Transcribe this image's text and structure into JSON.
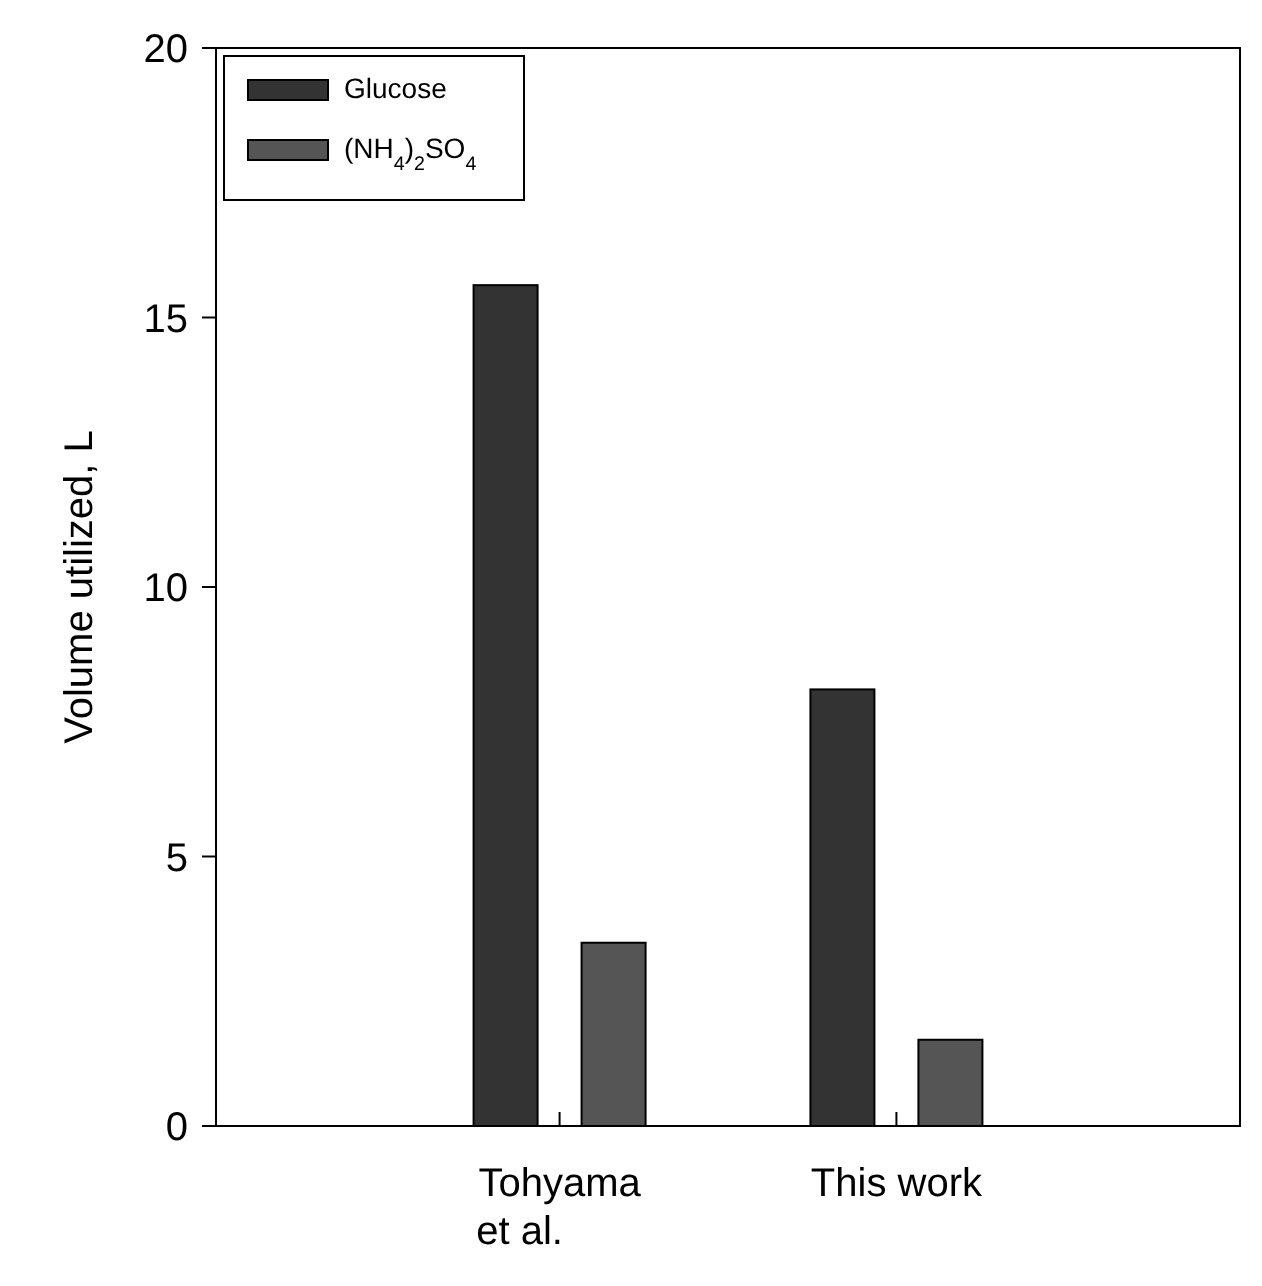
{
  "chart_data": {
    "type": "bar",
    "ylabel": "Volume utilized, L",
    "categories": [
      "Tohyama et al.",
      "This work"
    ],
    "series": [
      {
        "name": "Glucose",
        "color": "#333333",
        "values": [
          15.6,
          8.1
        ]
      },
      {
        "name": "(NH$_{4}$)$_{2}$SO$_{4}$",
        "color": "#555555",
        "values": [
          3.4,
          1.6
        ]
      }
    ],
    "ylim": [
      0,
      20
    ],
    "yticks": [
      0,
      5,
      10,
      15,
      20
    ],
    "legend": "top left"
  }
}
